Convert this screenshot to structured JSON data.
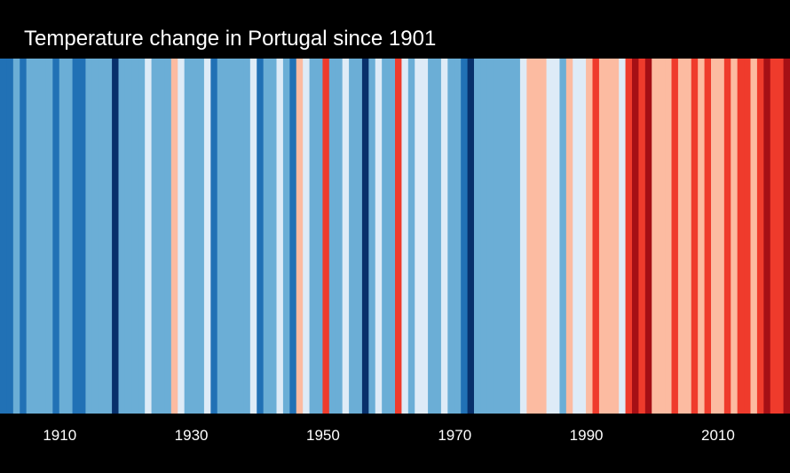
{
  "chart_data": {
    "type": "heatmap",
    "title": "Temperature change in Portugal since 1901",
    "xlabel": "",
    "ylabel": "",
    "grid": false,
    "legend": "none",
    "x_start": 1901,
    "x_end": 2020,
    "xlim": [
      1901,
      2021
    ],
    "x_ticks": [
      1910,
      1930,
      1950,
      1970,
      1990,
      2010
    ],
    "x_tick_labels": [
      "1910",
      "1930",
      "1950",
      "1970",
      "1990",
      "2010"
    ],
    "value_range": [
      -3,
      3
    ],
    "years": [
      1901,
      1902,
      1903,
      1904,
      1905,
      1906,
      1907,
      1908,
      1909,
      1910,
      1911,
      1912,
      1913,
      1914,
      1915,
      1916,
      1917,
      1918,
      1919,
      1920,
      1921,
      1922,
      1923,
      1924,
      1925,
      1926,
      1927,
      1928,
      1929,
      1930,
      1931,
      1932,
      1933,
      1934,
      1935,
      1936,
      1937,
      1938,
      1939,
      1940,
      1941,
      1942,
      1943,
      1944,
      1945,
      1946,
      1947,
      1948,
      1949,
      1950,
      1951,
      1952,
      1953,
      1954,
      1955,
      1956,
      1957,
      1958,
      1959,
      1960,
      1961,
      1962,
      1963,
      1964,
      1965,
      1966,
      1967,
      1968,
      1969,
      1970,
      1971,
      1972,
      1973,
      1974,
      1975,
      1976,
      1977,
      1978,
      1979,
      1980,
      1981,
      1982,
      1983,
      1984,
      1985,
      1986,
      1987,
      1988,
      1989,
      1990,
      1991,
      1992,
      1993,
      1994,
      1995,
      1996,
      1997,
      1998,
      1999,
      2000,
      2001,
      2002,
      2003,
      2004,
      2005,
      2006,
      2007,
      2008,
      2009,
      2010,
      2011,
      2012,
      2013,
      2014,
      2015,
      2016,
      2017,
      2018,
      2019,
      2020
    ],
    "anomaly_levels": [
      -2,
      -2,
      -1,
      -2,
      -1,
      -1,
      -1,
      -1,
      -2,
      -1,
      -1,
      -2,
      -2,
      -1,
      -1,
      -1,
      -1,
      -3,
      -1,
      -1,
      -1,
      -1,
      0,
      -1,
      -1,
      -1,
      1,
      0,
      -1,
      -1,
      -1,
      0,
      -2,
      -1,
      -1,
      -1,
      -1,
      -1,
      0,
      -2,
      -1,
      -1,
      0,
      -1,
      -2,
      1,
      0,
      -1,
      -1,
      2,
      -1,
      -1,
      0,
      -1,
      -1,
      -3,
      -1,
      0,
      -1,
      -1,
      2,
      0,
      -1,
      0,
      0,
      -1,
      -1,
      0,
      -1,
      -1,
      -2,
      -3,
      -1,
      -1,
      -1,
      -1,
      -1,
      -1,
      -1,
      0,
      1,
      1,
      1,
      0,
      0,
      -1,
      1,
      0,
      0,
      1,
      2,
      1,
      1,
      1,
      0,
      2,
      3,
      2,
      3,
      1,
      1,
      1,
      2,
      1,
      1,
      2,
      1,
      2,
      1,
      1,
      2,
      1,
      2,
      2,
      1,
      2,
      3,
      2,
      2,
      3
    ],
    "colors": {
      "-3": "#08306b",
      "-2": "#2171b5",
      "-1": "#6baed6",
      "0": "#deebf7",
      "1": "#fcbba1",
      "2": "#ef3b2c",
      "3": "#a50f15"
    },
    "background": "#000000",
    "text_color": "#ffffff"
  }
}
